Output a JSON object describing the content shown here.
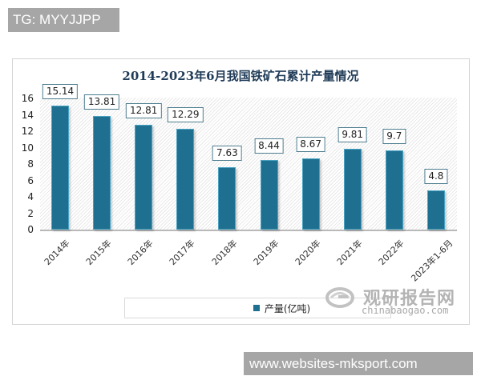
{
  "watermarks": {
    "top_tag": "TG: MYYJJPP",
    "bottom_tag": "www.websites-mksport.com",
    "brand_cn": "观研报告网",
    "brand_en": "chinabaogao.com"
  },
  "chart_data": {
    "type": "bar",
    "title": "2014-2023年6月我国铁矿石累计产量情况",
    "xlabel": "",
    "ylabel": "",
    "ylim": [
      0,
      16
    ],
    "yticks": [
      "0",
      "2",
      "4",
      "6",
      "8",
      "10",
      "12",
      "14",
      "16"
    ],
    "categories": [
      "2014年",
      "2015年",
      "2016年",
      "2017年",
      "2018年",
      "2019年",
      "2020年",
      "2021年",
      "2022年",
      "2023年1-6月"
    ],
    "series": [
      {
        "name": "产量(亿吨)",
        "color": "#1f6f91",
        "values": [
          15.14,
          13.81,
          12.81,
          12.29,
          7.63,
          8.44,
          8.67,
          9.81,
          9.7,
          4.8
        ]
      }
    ],
    "value_labels": [
      "15.14",
      "13.81",
      "12.81",
      "12.29",
      "7.63",
      "8.44",
      "8.67",
      "9.81",
      "9.7",
      "4.8"
    ],
    "legend": {
      "label": "产量(亿吨)",
      "position": "bottom"
    },
    "grid": false
  }
}
